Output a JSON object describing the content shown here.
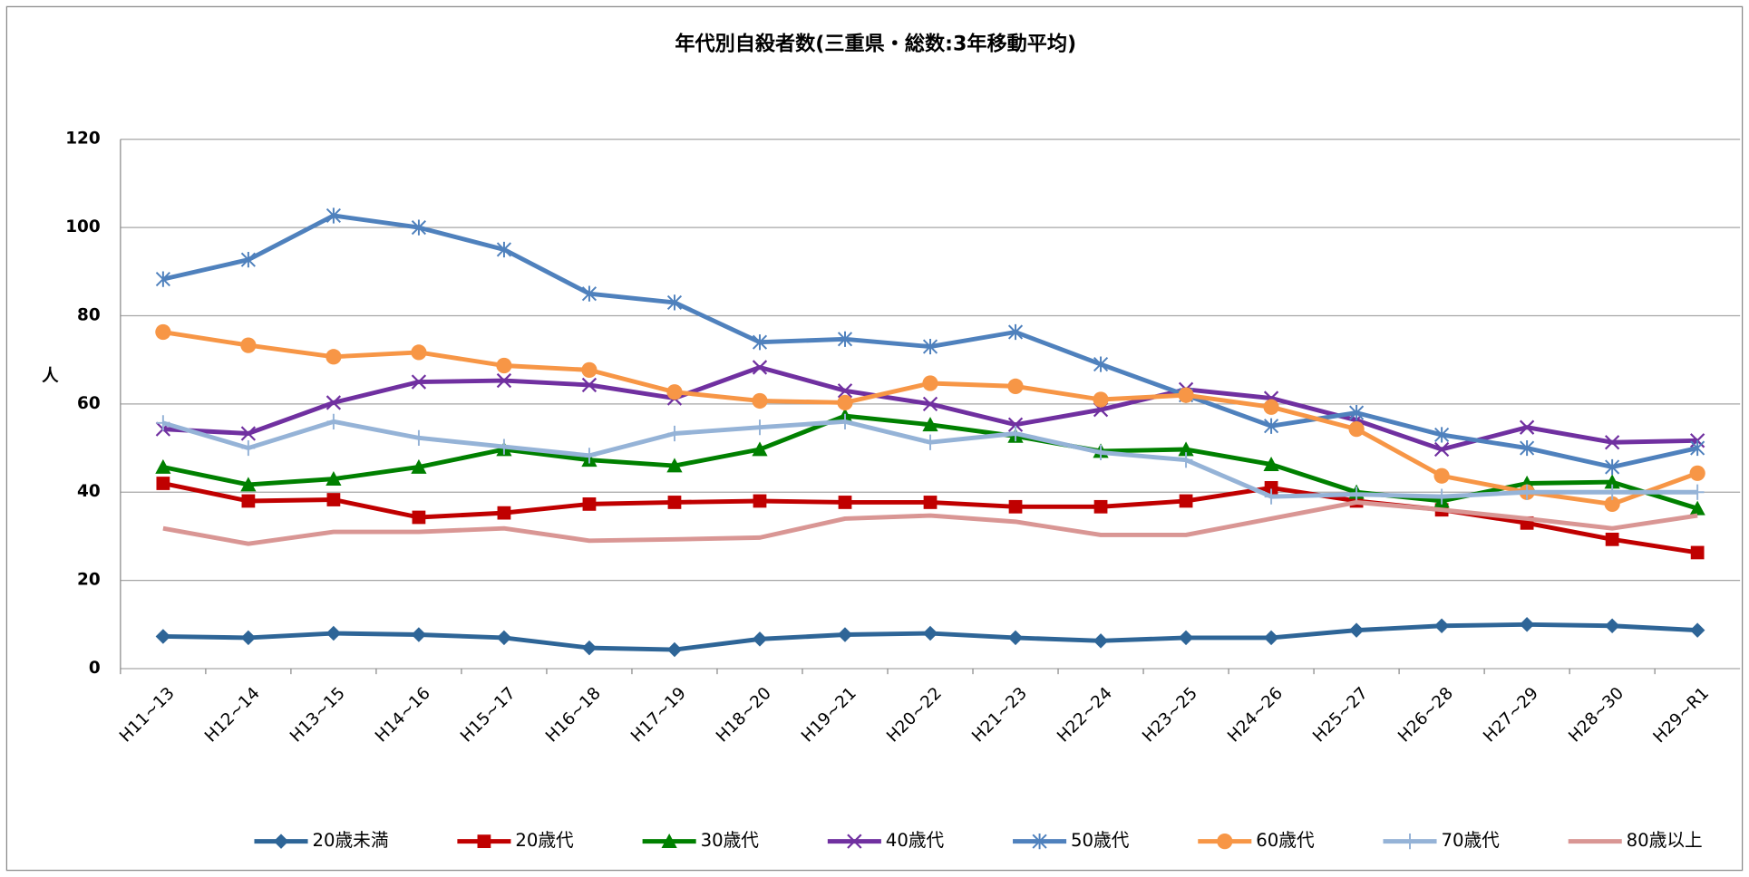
{
  "chart_data": {
    "type": "line",
    "title": "年代別自殺者数(三重県・総数:3年移動平均)",
    "y_label": "人",
    "categories": [
      "H11~13",
      "H12~14",
      "H13~15",
      "H14~16",
      "H15~17",
      "H16~18",
      "H17~19",
      "H18~20",
      "H19~21",
      "H20~22",
      "H21~23",
      "H22~24",
      "H23~25",
      "H24~26",
      "H25~27",
      "H26~28",
      "H27~29",
      "H28~30",
      "H29~R1"
    ],
    "ylim": [
      0,
      120
    ],
    "yticks": [
      0,
      20,
      40,
      60,
      80,
      100,
      120
    ],
    "grid": true,
    "legend": "bottom",
    "series": [
      {
        "name": "20歳未満",
        "color": "#2e6597",
        "marker": "diamond",
        "values": [
          7.3,
          7,
          8,
          7.7,
          7,
          4.7,
          4.3,
          6.7,
          7.7,
          8,
          7,
          6.3,
          7,
          7,
          8.7,
          9.7,
          10,
          9.7,
          8.7
        ]
      },
      {
        "name": "20歳代",
        "color": "#c00000",
        "marker": "square",
        "values": [
          42,
          38,
          38.3,
          34.3,
          35.3,
          37.3,
          37.7,
          38,
          37.7,
          37.7,
          36.7,
          36.7,
          38,
          41,
          38,
          36,
          33,
          29.3,
          26.3
        ]
      },
      {
        "name": "30歳代",
        "color": "#008000",
        "marker": "triangle",
        "values": [
          45.7,
          41.7,
          43,
          45.7,
          49.7,
          47.3,
          46,
          49.7,
          57.3,
          55.3,
          52.7,
          49.3,
          49.7,
          46.3,
          40,
          38,
          42,
          42.3,
          36.3
        ]
      },
      {
        "name": "40歳代",
        "color": "#7030a0",
        "marker": "x",
        "values": [
          54.3,
          53.3,
          60.3,
          65,
          65.3,
          64.3,
          61.3,
          68.3,
          63,
          60,
          55.3,
          58.7,
          63.3,
          61.3,
          56.3,
          49.7,
          54.7,
          51.3,
          51.7
        ]
      },
      {
        "name": "50歳代",
        "color": "#4f81bd",
        "marker": "asterisk",
        "values": [
          88.3,
          92.7,
          102.7,
          100,
          95,
          85,
          83,
          74,
          74.7,
          73,
          76.3,
          69,
          62,
          55,
          58,
          53,
          50,
          45.7,
          50
        ]
      },
      {
        "name": "60歳代",
        "color": "#f79646",
        "marker": "circle",
        "values": [
          76.3,
          73.3,
          70.7,
          71.7,
          68.7,
          67.7,
          62.7,
          60.7,
          60.3,
          64.7,
          64,
          61,
          62,
          59.3,
          54.3,
          43.7,
          40,
          37.3,
          44.3
        ]
      },
      {
        "name": "70歳代",
        "color": "#95b3d7",
        "marker": "plus",
        "values": [
          55.7,
          50,
          56,
          52.3,
          50.3,
          48.3,
          53.3,
          54.7,
          56,
          51.3,
          53.3,
          49,
          47.3,
          39,
          39.5,
          39,
          40,
          40,
          40
        ]
      },
      {
        "name": "80歳以上",
        "color": "#d99694",
        "marker": "none",
        "values": [
          31.8,
          28.3,
          31,
          31,
          31.8,
          29,
          29.3,
          29.7,
          34,
          34.7,
          33.3,
          30.3,
          30.3,
          34,
          37.7,
          36,
          34,
          31.8,
          34.7
        ]
      }
    ]
  }
}
